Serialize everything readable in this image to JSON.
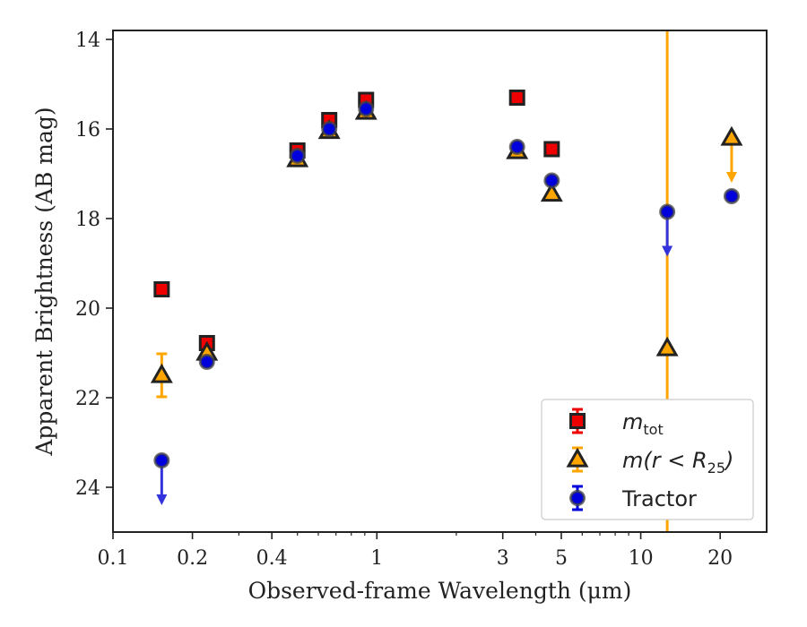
{
  "chart_data": {
    "type": "scatter",
    "xlabel": "Observed-frame Wavelength (μm)",
    "ylabel": "Apparent Brightness (AB mag)",
    "x_scale": "log",
    "xlim": [
      0.1,
      30
    ],
    "ylim": [
      25,
      13.8
    ],
    "y_inverted": true,
    "x_ticks": [
      0.1,
      0.2,
      0.4,
      1,
      3,
      5,
      10,
      20
    ],
    "x_tick_labels": [
      "0.1",
      "0.2",
      "0.4",
      "1",
      "3",
      "5",
      "10",
      "20"
    ],
    "y_ticks": [
      14,
      16,
      18,
      20,
      22,
      24
    ],
    "y_tick_labels": [
      "14",
      "16",
      "18",
      "20",
      "22",
      "24"
    ],
    "grid": false,
    "legend_position": "lower-right",
    "vertical_line": {
      "x": 12.6,
      "color": "#ffa500"
    },
    "series": [
      {
        "name": "m_tot",
        "legend_label_main": "m",
        "legend_label_sub": "tot",
        "marker": "square",
        "color": "#ee0000",
        "edge_color": "#222222",
        "points": [
          {
            "x": 0.153,
            "y": 19.58
          },
          {
            "x": 0.227,
            "y": 20.78
          },
          {
            "x": 0.5,
            "y": 16.48
          },
          {
            "x": 0.66,
            "y": 15.8
          },
          {
            "x": 0.91,
            "y": 15.35
          },
          {
            "x": 3.4,
            "y": 15.3
          },
          {
            "x": 4.6,
            "y": 16.45
          }
        ]
      },
      {
        "name": "m(r < R25)",
        "legend_label_main": "m(r < R",
        "legend_label_sub": "25",
        "legend_label_end": ")",
        "marker": "triangle",
        "color": "#ffa500",
        "edge_color": "#222222",
        "points": [
          {
            "x": 0.153,
            "y": 21.5,
            "yerr": 0.48
          },
          {
            "x": 0.227,
            "y": 21.0
          },
          {
            "x": 0.5,
            "y": 16.68
          },
          {
            "x": 0.66,
            "y": 16.05
          },
          {
            "x": 0.91,
            "y": 15.62
          },
          {
            "x": 3.4,
            "y": 16.5
          },
          {
            "x": 4.6,
            "y": 17.45
          },
          {
            "x": 12.6,
            "y": 20.9
          },
          {
            "x": 22.1,
            "y": 16.2,
            "upper_limit": true
          }
        ]
      },
      {
        "name": "Tractor",
        "legend_label_main": "Tractor",
        "marker": "circle",
        "color": "#0000dd",
        "edge_color": "#444444",
        "points": [
          {
            "x": 0.153,
            "y": 23.4,
            "upper_limit": true
          },
          {
            "x": 0.227,
            "y": 21.2
          },
          {
            "x": 0.5,
            "y": 16.6
          },
          {
            "x": 0.66,
            "y": 16.0
          },
          {
            "x": 0.91,
            "y": 15.55
          },
          {
            "x": 3.4,
            "y": 16.4
          },
          {
            "x": 4.6,
            "y": 17.15
          },
          {
            "x": 12.6,
            "y": 17.85,
            "upper_limit": true
          },
          {
            "x": 22.1,
            "y": 17.5
          }
        ]
      }
    ]
  }
}
